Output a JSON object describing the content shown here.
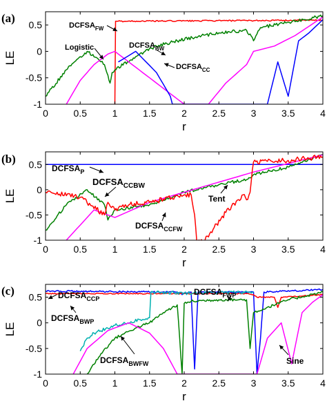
{
  "chart_data": [
    {
      "type": "line",
      "panel_label": "(a)",
      "xlabel": "r",
      "ylabel": "LE",
      "xlim": [
        0,
        4
      ],
      "ylim": [
        -1,
        0.75
      ],
      "xticks": [
        0,
        0.5,
        1,
        1.5,
        2,
        2.5,
        3,
        3.5,
        4
      ],
      "xtick_labels": [
        "0",
        "0.5",
        "1",
        "1.5",
        "2",
        "2.5",
        "3",
        "3.5",
        "4"
      ],
      "yticks": [
        -1,
        -0.5,
        0,
        0.5
      ],
      "ytick_labels": [
        "-1",
        "-0.5",
        "0",
        "0.5"
      ],
      "grid": false,
      "series": [
        {
          "name": "DCFSA_FW",
          "color": "#ff0000",
          "noise": 0.012,
          "x": [
            1.0,
            1.01,
            1.03,
            4.0
          ],
          "y": [
            -1.0,
            0.57,
            0.57,
            0.59
          ]
        },
        {
          "name": "DCFSA_BW",
          "color": "#008000",
          "noise": 0.03,
          "x": [
            0.0,
            0.3,
            0.6,
            0.85,
            0.9,
            0.93,
            0.96,
            1.0,
            1.3,
            1.6,
            1.9,
            2.2,
            2.5,
            2.9,
            3.0,
            3.1,
            3.5,
            3.75,
            4.0
          ],
          "y": [
            -0.85,
            -0.35,
            0.0,
            -0.25,
            -0.45,
            -0.6,
            -0.4,
            -0.35,
            -0.1,
            0.1,
            0.2,
            0.28,
            0.35,
            0.4,
            0.2,
            0.45,
            0.55,
            0.6,
            0.68
          ]
        },
        {
          "name": "Logistic",
          "color": "#ff00ff",
          "x": [
            0.3,
            0.5,
            0.7,
            0.9,
            1.0,
            1.2,
            1.5,
            1.8,
            2.0,
            2.35,
            2.6,
            2.9,
            3.0,
            3.3,
            3.6,
            4.0
          ],
          "y": [
            -1.0,
            -0.55,
            -0.25,
            -0.05,
            0.0,
            -0.2,
            -0.5,
            -0.8,
            -1.0,
            -1.0,
            -0.6,
            -0.25,
            0.0,
            0.1,
            0.3,
            0.65
          ]
        },
        {
          "name": "DCFSA_CC",
          "color": "#0000ff",
          "x": [
            1.05,
            1.3,
            1.6,
            1.8,
            1.83,
            3.2,
            3.35,
            3.5,
            3.65,
            3.8,
            4.0
          ],
          "y": [
            -0.2,
            0.0,
            -0.4,
            -0.85,
            -1.0,
            -1.0,
            -0.2,
            -0.85,
            0.2,
            0.35,
            0.6
          ]
        }
      ],
      "annotations": [
        {
          "text": "DCFSA",
          "sub": "FW"
        },
        {
          "text": "Logistic",
          "sub": ""
        },
        {
          "text": "DCFSA",
          "sub": "BW"
        },
        {
          "text": "DCFSA",
          "sub": "CC"
        }
      ]
    },
    {
      "type": "line",
      "panel_label": "(b)",
      "xlabel": "r",
      "ylabel": "LE",
      "xlim": [
        0,
        4
      ],
      "ylim": [
        -1,
        0.75
      ],
      "xticks": [
        0,
        0.5,
        1,
        1.5,
        2,
        2.5,
        3,
        3.5,
        4
      ],
      "xtick_labels": [
        "0",
        "0.5",
        "1",
        "1.5",
        "2",
        "2.5",
        "3",
        "3.5",
        "4"
      ],
      "yticks": [
        -1,
        -0.5,
        0,
        0.5
      ],
      "ytick_labels": [
        "-1",
        "-0.5",
        "0",
        "0.5"
      ],
      "grid": false,
      "series": [
        {
          "name": "DCFSA_P",
          "color": "#0000ff",
          "x": [
            0.0,
            4.0
          ],
          "y": [
            0.5,
            0.5
          ]
        },
        {
          "name": "DCFSA_CCBW",
          "color": "#008000",
          "noise": 0.03,
          "x": [
            0.0,
            0.3,
            0.6,
            0.85,
            0.9,
            1.0,
            1.5,
            2.0,
            2.5,
            2.9,
            3.0,
            3.5,
            4.0
          ],
          "y": [
            -0.8,
            -0.3,
            0.0,
            -0.3,
            -0.6,
            -0.4,
            -0.3,
            -0.05,
            0.1,
            0.2,
            0.3,
            0.45,
            0.7
          ]
        },
        {
          "name": "Tent",
          "color": "#ff00ff",
          "x": [
            0.3,
            0.7,
            1.0,
            1.5,
            2.0,
            2.5,
            3.0,
            3.5,
            4.0
          ],
          "y": [
            -1.0,
            -0.4,
            -0.55,
            -0.25,
            -0.05,
            0.15,
            0.35,
            0.52,
            0.69
          ]
        },
        {
          "name": "DCFSA_CCFW",
          "color": "#ff0000",
          "noise": 0.05,
          "x": [
            0.0,
            0.5,
            0.85,
            0.9,
            1.0,
            1.2,
            1.5,
            2.0,
            2.1,
            2.15,
            2.18,
            2.3,
            2.6,
            2.85,
            2.9,
            2.95,
            3.0,
            3.5,
            4.0
          ],
          "y": [
            -0.05,
            -0.15,
            -0.5,
            -0.25,
            -0.4,
            -0.3,
            -0.25,
            -0.1,
            -0.1,
            -0.5,
            -1.0,
            -1.0,
            -0.45,
            -0.1,
            -0.2,
            -0.05,
            0.55,
            0.58,
            0.65
          ]
        }
      ],
      "annotations": [
        {
          "text": "DCFSA",
          "sub": "P"
        },
        {
          "text": "DCFSA",
          "sub": "CCBW"
        },
        {
          "text": "DCFSA",
          "sub": "CCFW"
        },
        {
          "text": "Tent",
          "sub": ""
        }
      ]
    },
    {
      "type": "line",
      "panel_label": "(c)",
      "xlabel": "r",
      "ylabel": "LE",
      "xlim": [
        0,
        4
      ],
      "ylim": [
        -1,
        0.75
      ],
      "xticks": [
        0,
        0.5,
        1,
        1.5,
        2,
        2.5,
        3,
        3.5,
        4
      ],
      "xtick_labels": [
        "0",
        "0.5",
        "1",
        "1.5",
        "2",
        "2.5",
        "3",
        "3.5",
        "4"
      ],
      "yticks": [
        -1,
        -0.5,
        0,
        0.5
      ],
      "ytick_labels": [
        "-1",
        "-0.5",
        "0",
        "0.5"
      ],
      "grid": false,
      "series": [
        {
          "name": "DCFSA_CCP",
          "color": "#0000ff",
          "noise": 0.015,
          "x": [
            0.0,
            1.9,
            1.97,
            2.0,
            2.1,
            2.15,
            2.2,
            3.0,
            3.05,
            3.1,
            3.15,
            4.0
          ],
          "y": [
            0.62,
            0.6,
            0.55,
            0.58,
            0.6,
            -0.9,
            0.6,
            0.6,
            -1.0,
            -0.3,
            0.6,
            0.65
          ]
        },
        {
          "name": "DCFSA_BWP",
          "color": "#ff0000",
          "noise": 0.01,
          "x": [
            0.0,
            2.9,
            3.0,
            3.05,
            3.3,
            3.35,
            3.4,
            4.0
          ],
          "y": [
            0.57,
            0.57,
            0.55,
            0.5,
            0.5,
            0.3,
            0.5,
            0.55
          ]
        },
        {
          "name": "DCFSA_FWP",
          "color": "#00b0b0",
          "noise": 0.03,
          "x": [
            0.5,
            0.6,
            0.7,
            1.0,
            1.5,
            1.52,
            2.0,
            3.0
          ],
          "y": [
            -0.55,
            -0.3,
            -0.2,
            -0.05,
            0.1,
            0.6,
            0.58,
            0.6
          ]
        },
        {
          "name": "DCFSA_BWFW",
          "color": "#008000",
          "noise": 0.025,
          "x": [
            0.6,
            0.8,
            1.0,
            1.3,
            1.5,
            1.7,
            1.9,
            1.97,
            2.0,
            2.1,
            2.5,
            2.9,
            2.95,
            3.0,
            3.5,
            4.0
          ],
          "y": [
            -1.0,
            -0.6,
            -0.3,
            -0.1,
            0.0,
            0.2,
            0.35,
            -1.0,
            0.38,
            0.42,
            0.45,
            0.45,
            -0.5,
            0.2,
            0.45,
            0.6
          ]
        },
        {
          "name": "Sine",
          "color": "#ff00ff",
          "x": [
            0.4,
            0.6,
            0.9,
            1.2,
            1.5,
            1.7,
            1.9,
            3.05,
            3.2,
            3.4,
            3.55,
            3.7,
            3.85,
            4.0
          ],
          "y": [
            -1.0,
            -0.5,
            -0.15,
            0.0,
            -0.2,
            -0.5,
            -1.0,
            -1.0,
            -0.3,
            0.0,
            -0.8,
            0.2,
            0.4,
            0.55
          ]
        }
      ],
      "annotations": [
        {
          "text": "DCFSA",
          "sub": "CCP"
        },
        {
          "text": "DCFSA",
          "sub": "BWP"
        },
        {
          "text": "DCFSA",
          "sub": "FWP"
        },
        {
          "text": "DCFSA",
          "sub": "BWFW"
        },
        {
          "text": "Sine",
          "sub": ""
        }
      ]
    }
  ]
}
